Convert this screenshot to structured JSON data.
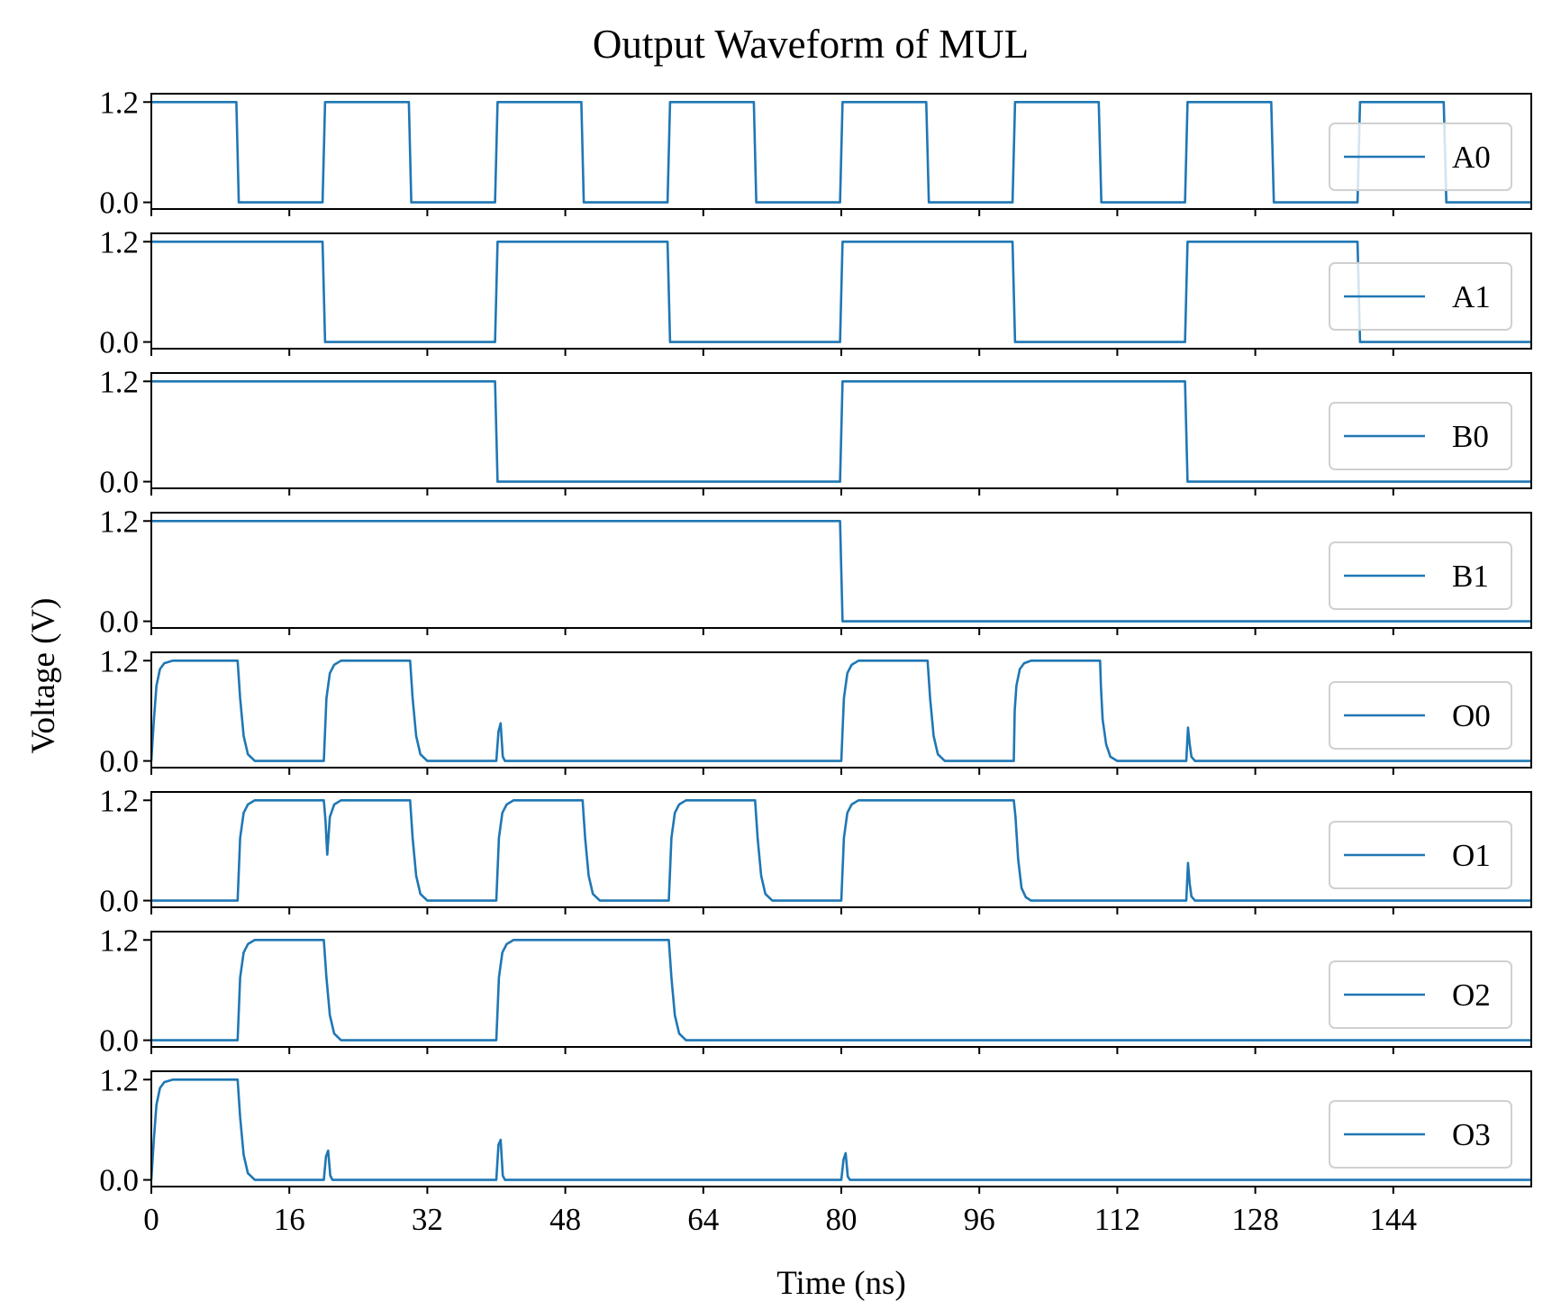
{
  "chart_data": {
    "type": "line",
    "title": "Output Waveform of MUL",
    "xlabel": "Time (ns)",
    "ylabel": "Voltage (V)",
    "xlim": [
      0,
      160
    ],
    "ylim": [
      -0.08,
      1.3
    ],
    "xticks": [
      0,
      16,
      32,
      48,
      64,
      80,
      96,
      112,
      128,
      144
    ],
    "yticks": [
      0.0,
      1.2
    ],
    "ytick_labels": [
      "0.0",
      "1.2"
    ],
    "legend_location": "right",
    "grid": false,
    "line_color": "#1f77b4",
    "series": [
      {
        "name": "A0",
        "kind": "digital",
        "x": [
          0,
          10,
          20,
          30,
          40,
          50,
          60,
          70,
          80,
          90,
          100,
          110,
          120,
          130,
          140,
          150,
          160
        ],
        "y": [
          1.2,
          0.0,
          1.2,
          0.0,
          1.2,
          0.0,
          1.2,
          0.0,
          1.2,
          0.0,
          1.2,
          0.0,
          1.2,
          0.0,
          1.2,
          0.0,
          0.0
        ]
      },
      {
        "name": "A1",
        "kind": "digital",
        "x": [
          0,
          20,
          40,
          60,
          80,
          100,
          120,
          140,
          160
        ],
        "y": [
          1.2,
          0.0,
          1.2,
          0.0,
          1.2,
          0.0,
          1.2,
          0.0,
          0.0
        ]
      },
      {
        "name": "B0",
        "kind": "digital",
        "x": [
          0,
          40,
          80,
          120,
          160
        ],
        "y": [
          1.2,
          0.0,
          1.2,
          0.0,
          0.0
        ]
      },
      {
        "name": "B1",
        "kind": "digital",
        "x": [
          0,
          80,
          160
        ],
        "y": [
          1.2,
          0.0,
          0.0
        ]
      },
      {
        "name": "O0",
        "kind": "analog",
        "x": [
          0,
          0.3,
          0.6,
          1.0,
          1.5,
          2.5,
          10.0,
          10.3,
          10.7,
          11.2,
          12.0,
          20.0,
          20.3,
          20.7,
          21.2,
          22.0,
          30.0,
          30.3,
          30.7,
          31.2,
          32.0,
          40.0,
          40.25,
          40.5,
          40.75,
          41.0,
          80.0,
          80.3,
          80.7,
          81.2,
          82.0,
          90.0,
          90.3,
          90.7,
          91.2,
          92.0,
          100.0,
          100.1,
          100.3,
          100.7,
          101.2,
          102.0,
          110.0,
          110.1,
          110.3,
          110.7,
          111.2,
          112.0,
          120.0,
          120.2,
          120.4,
          120.6,
          121.0,
          160.0
        ],
        "y": [
          0.0,
          0.5,
          0.9,
          1.1,
          1.17,
          1.2,
          1.2,
          0.75,
          0.3,
          0.08,
          0.0,
          0.0,
          0.75,
          1.05,
          1.15,
          1.2,
          1.2,
          0.75,
          0.3,
          0.08,
          0.0,
          0.0,
          0.35,
          0.45,
          0.05,
          0.0,
          0.0,
          0.75,
          1.05,
          1.15,
          1.2,
          1.2,
          0.75,
          0.3,
          0.08,
          0.0,
          0.0,
          0.6,
          0.9,
          1.1,
          1.17,
          1.2,
          1.2,
          0.9,
          0.5,
          0.2,
          0.05,
          0.0,
          0.0,
          0.4,
          0.2,
          0.05,
          0.0,
          0.0
        ]
      },
      {
        "name": "O1",
        "kind": "analog",
        "x": [
          0,
          10.0,
          10.3,
          10.7,
          11.2,
          12.0,
          20.0,
          20.2,
          20.4,
          20.7,
          21.2,
          22.0,
          30.0,
          30.3,
          30.7,
          31.2,
          32.0,
          40.0,
          40.3,
          40.7,
          41.2,
          42.0,
          50.0,
          50.3,
          50.7,
          51.2,
          52.0,
          60.0,
          60.3,
          60.7,
          61.2,
          62.0,
          70.0,
          70.3,
          70.7,
          71.2,
          72.0,
          80.0,
          80.3,
          80.7,
          81.2,
          82.0,
          100.0,
          100.2,
          100.5,
          100.9,
          101.4,
          102.0,
          120.0,
          120.2,
          120.4,
          120.6,
          121.0,
          160.0
        ],
        "y": [
          0.0,
          0.0,
          0.75,
          1.05,
          1.15,
          1.2,
          1.2,
          0.95,
          0.55,
          1.0,
          1.15,
          1.2,
          1.2,
          0.75,
          0.3,
          0.08,
          0.0,
          0.0,
          0.75,
          1.05,
          1.15,
          1.2,
          1.2,
          0.75,
          0.3,
          0.08,
          0.0,
          0.0,
          0.75,
          1.05,
          1.15,
          1.2,
          1.2,
          0.75,
          0.3,
          0.08,
          0.0,
          0.0,
          0.75,
          1.05,
          1.15,
          1.2,
          1.2,
          1.0,
          0.5,
          0.15,
          0.04,
          0.0,
          0.0,
          0.45,
          0.2,
          0.05,
          0.0,
          0.0
        ]
      },
      {
        "name": "O2",
        "kind": "analog",
        "x": [
          0,
          10.0,
          10.3,
          10.7,
          11.2,
          12.0,
          20.0,
          20.3,
          20.7,
          21.2,
          22.0,
          40.0,
          40.3,
          40.7,
          41.2,
          42.0,
          60.0,
          60.3,
          60.7,
          61.2,
          62.0,
          160.0
        ],
        "y": [
          0.0,
          0.0,
          0.75,
          1.05,
          1.15,
          1.2,
          1.2,
          0.75,
          0.3,
          0.08,
          0.0,
          0.0,
          0.75,
          1.05,
          1.15,
          1.2,
          1.2,
          0.75,
          0.3,
          0.08,
          0.0,
          0.0
        ]
      },
      {
        "name": "O3",
        "kind": "analog",
        "x": [
          0,
          0.3,
          0.6,
          1.0,
          1.5,
          2.5,
          10.0,
          10.3,
          10.7,
          11.2,
          12.0,
          20.0,
          20.25,
          20.5,
          20.75,
          21.0,
          40.0,
          40.25,
          40.5,
          40.75,
          41.0,
          80.0,
          80.25,
          80.5,
          80.75,
          81.0,
          160.0
        ],
        "y": [
          0.0,
          0.5,
          0.9,
          1.1,
          1.17,
          1.2,
          1.2,
          0.75,
          0.3,
          0.08,
          0.0,
          0.0,
          0.28,
          0.35,
          0.05,
          0.0,
          0.0,
          0.42,
          0.48,
          0.05,
          0.0,
          0.0,
          0.24,
          0.32,
          0.04,
          0.0,
          0.0
        ]
      }
    ]
  }
}
